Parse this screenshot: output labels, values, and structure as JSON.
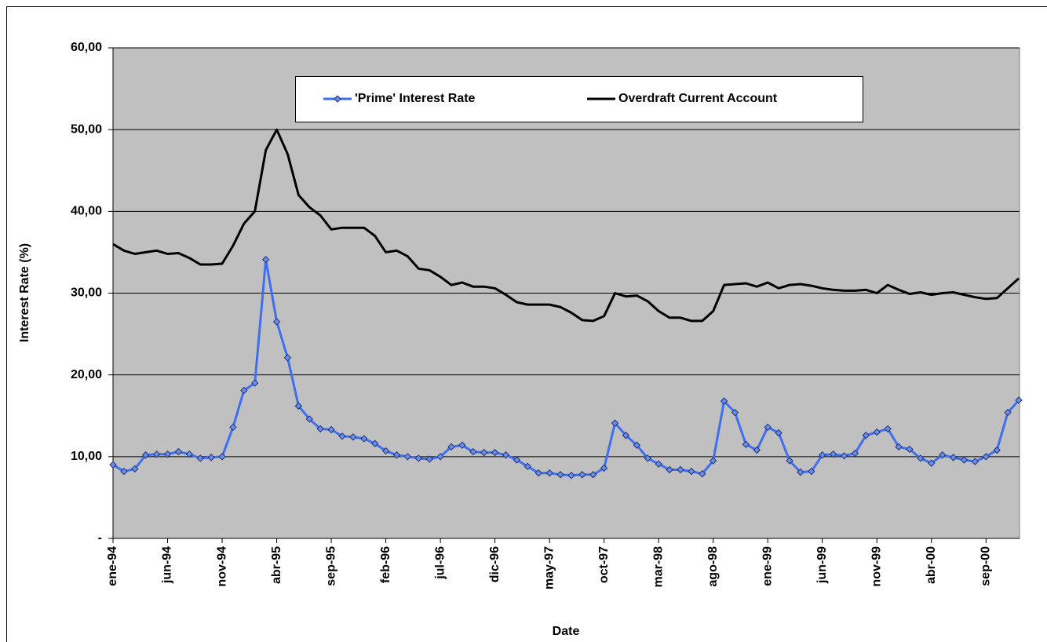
{
  "chart_data": {
    "type": "line",
    "y_label": "Interest Rate (%)",
    "x_label": "Date",
    "categories": [
      "ene-94",
      null,
      null,
      null,
      null,
      "jun-94",
      null,
      null,
      null,
      null,
      "nov-94",
      null,
      null,
      null,
      null,
      "abr-95",
      null,
      null,
      null,
      null,
      "sep-95",
      null,
      null,
      null,
      null,
      "feb-96",
      null,
      null,
      null,
      null,
      "jul-96",
      null,
      null,
      null,
      null,
      "dic-96",
      null,
      null,
      null,
      null,
      "may-97",
      null,
      null,
      null,
      null,
      "oct-97",
      null,
      null,
      null,
      null,
      "mar-98",
      null,
      null,
      null,
      null,
      "ago-98",
      null,
      null,
      null,
      null,
      "ene-99",
      null,
      null,
      null,
      null,
      "jun-99",
      null,
      null,
      null,
      null,
      "nov-99",
      null,
      null,
      null,
      null,
      "abr-00",
      null,
      null,
      null,
      null,
      "sep-00",
      null,
      null,
      null
    ],
    "series": [
      {
        "name": "'Prime' Interest Rate",
        "color": "#3f6fef",
        "markers": true,
        "values": [
          9.0,
          8.2,
          8.5,
          10.2,
          10.3,
          10.3,
          10.6,
          10.3,
          9.8,
          9.9,
          10.0,
          13.6,
          18.1,
          19.0,
          34.1,
          26.5,
          22.1,
          16.2,
          14.6,
          13.4,
          13.3,
          12.5,
          12.4,
          12.2,
          11.6,
          10.7,
          10.2,
          10.0,
          9.8,
          9.7,
          10.0,
          11.2,
          11.4,
          10.6,
          10.5,
          10.5,
          10.2,
          9.6,
          8.8,
          8.0,
          8.0,
          7.8,
          7.7,
          7.8,
          7.8,
          8.6,
          14.1,
          12.6,
          11.4,
          9.8,
          9.1,
          8.4,
          8.4,
          8.2,
          7.9,
          9.5,
          16.8,
          15.4,
          11.5,
          10.8,
          13.6,
          12.9,
          9.5,
          8.1,
          8.2,
          10.2,
          10.3,
          10.1,
          10.4,
          12.6,
          13.0,
          13.4,
          11.2,
          10.9,
          9.8,
          9.2,
          10.2,
          9.9,
          9.6,
          9.4,
          10.0,
          10.8,
          15.4,
          16.9
        ]
      },
      {
        "name": "Overdraft Current Account",
        "color": "#000000",
        "markers": false,
        "values": [
          36.0,
          35.2,
          34.8,
          35.0,
          35.2,
          34.8,
          34.9,
          34.3,
          33.5,
          33.5,
          33.6,
          35.8,
          38.5,
          40.0,
          47.5,
          50.0,
          47.0,
          42.0,
          40.5,
          39.5,
          37.8,
          38.0,
          38.0,
          38.0,
          37.0,
          35.0,
          35.2,
          34.5,
          33.0,
          32.8,
          32.0,
          31.0,
          31.3,
          30.8,
          30.8,
          30.6,
          29.8,
          28.9,
          28.6,
          28.6,
          28.6,
          28.3,
          27.6,
          26.7,
          26.6,
          27.2,
          30.0,
          29.6,
          29.7,
          29.0,
          27.8,
          27.0,
          27.0,
          26.6,
          26.6,
          27.8,
          31.0,
          31.1,
          31.2,
          30.8,
          31.3,
          30.6,
          31.0,
          31.1,
          30.9,
          30.6,
          30.4,
          30.3,
          30.3,
          30.4,
          30.0,
          31.0,
          30.4,
          29.9,
          30.1,
          29.8,
          30.0,
          30.1,
          29.8,
          29.5,
          29.3,
          29.4,
          30.6,
          31.8
        ]
      }
    ],
    "ylim": [
      0,
      60
    ],
    "yticks": [
      {
        "value": 0,
        "label": "-"
      },
      {
        "value": 10,
        "label": "10,00"
      },
      {
        "value": 20,
        "label": "20,00"
      },
      {
        "value": 30,
        "label": "30,00"
      },
      {
        "value": 40,
        "label": "40,00"
      },
      {
        "value": 50,
        "label": "50,00"
      },
      {
        "value": 60,
        "label": "60,00"
      }
    ],
    "grid": true,
    "legend": "top",
    "plot_background": "#c0c0c0"
  }
}
